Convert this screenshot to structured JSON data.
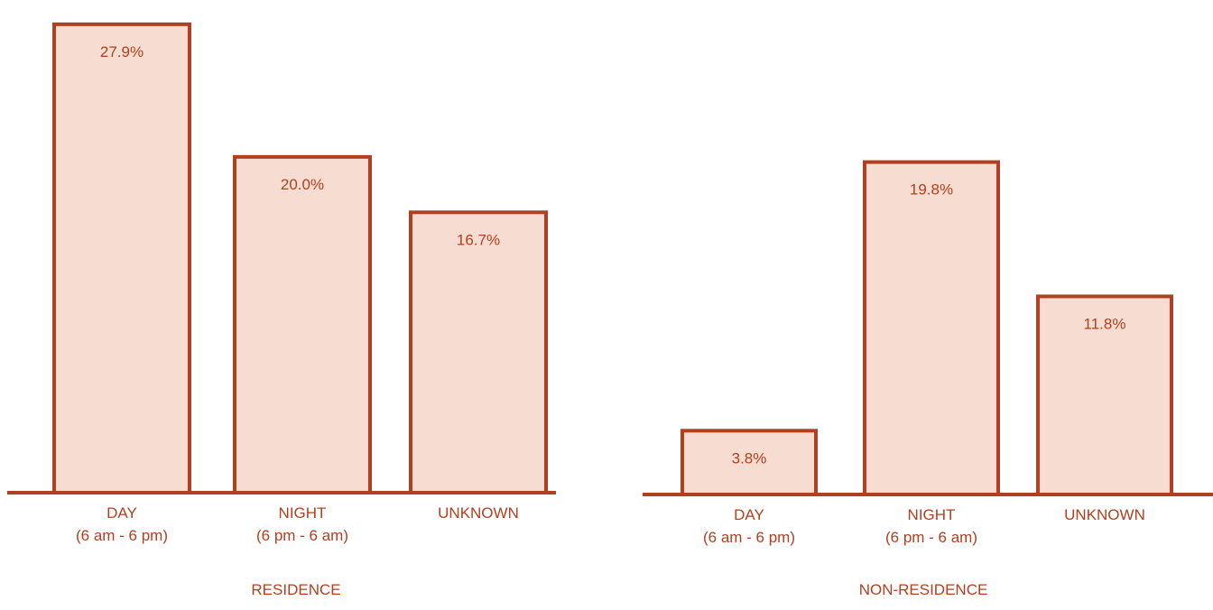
{
  "colors": {
    "bar_fill": "#f7ddd1",
    "bar_stroke": "#b0401f",
    "baseline": "#b0401f",
    "text": "#b0401f",
    "background": "#ffffff"
  },
  "chart_data": [
    {
      "type": "bar",
      "title": "RESIDENCE",
      "categories": [
        [
          "DAY",
          "(6 am - 6 pm)"
        ],
        [
          "NIGHT",
          "(6 pm - 6 am)"
        ],
        [
          "UNKNOWN"
        ]
      ],
      "values": [
        27.9,
        20.0,
        16.7
      ],
      "value_labels": [
        "27.9%",
        "20.0%",
        "16.7%"
      ],
      "unit": "%",
      "ylim": [
        0,
        28.7
      ],
      "grid": false
    },
    {
      "type": "bar",
      "title": "NON-RESIDENCE",
      "categories": [
        [
          "DAY",
          "(6 am - 6 pm)"
        ],
        [
          "NIGHT",
          "(6 pm - 6 am)"
        ],
        [
          "UNKNOWN"
        ]
      ],
      "values": [
        3.8,
        19.8,
        11.8
      ],
      "value_labels": [
        "3.8%",
        "19.8%",
        "11.8%"
      ],
      "unit": "%",
      "ylim": [
        0,
        28.7
      ],
      "grid": false
    }
  ]
}
